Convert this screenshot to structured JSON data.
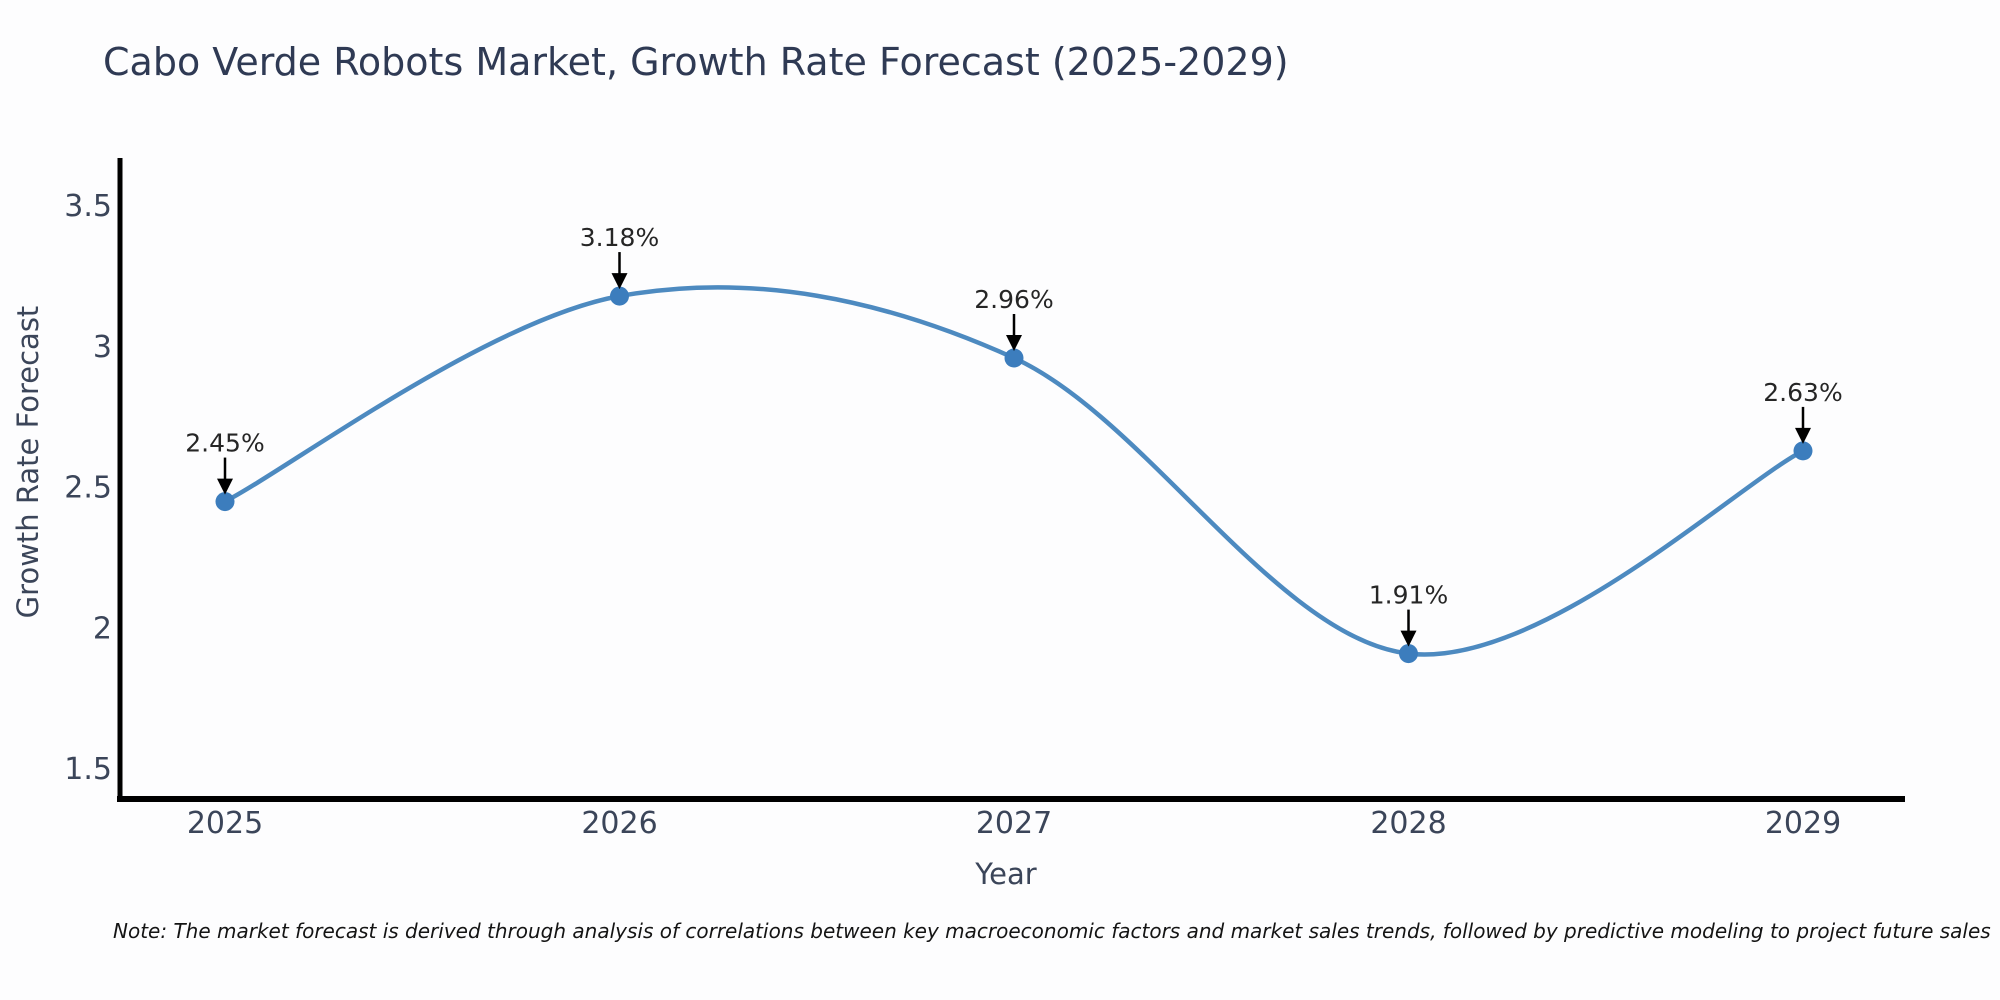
{
  "page": {
    "background": "#fdfdfe"
  },
  "chart_data": {
    "type": "line",
    "title": "Cabo Verde Robots Market, Growth Rate Forecast (2025-2029)",
    "xlabel": "Year",
    "ylabel": "Growth Rate Forecast",
    "categories": [
      "2025",
      "2026",
      "2027",
      "2028",
      "2029"
    ],
    "series": [
      {
        "name": "Growth Rate Forecast",
        "values": [
          2.45,
          3.18,
          2.96,
          1.91,
          2.63
        ]
      }
    ],
    "point_labels": [
      "2.45%",
      "3.18%",
      "2.96%",
      "1.91%",
      "2.63%"
    ],
    "yticks": [
      1.5,
      2,
      2.5,
      3,
      3.5
    ],
    "ytick_labels": [
      "1.5",
      "2",
      "2.5",
      "3",
      "3.5"
    ],
    "ylim": [
      1.39,
      3.67
    ],
    "grid": false,
    "legend": "none",
    "smooth": true,
    "annotation_arrows": true,
    "line_color": "#4d8ac0",
    "marker_color": "#3c7dbd",
    "axis_color": "#000000",
    "annotation_color": "#262626",
    "tick_color": "#3b4559",
    "title_color": "#2f3a54"
  },
  "note": {
    "text": "Note: The market forecast is derived through analysis of correlations between key macroeconomic factors and market sales trends, followed by predictive modeling to project future sales"
  }
}
